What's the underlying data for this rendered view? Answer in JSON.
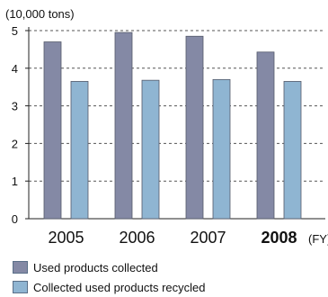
{
  "chart_data": {
    "type": "bar",
    "unit_label": "(10,000 tons)",
    "categories": [
      "2005",
      "2006",
      "2007",
      "2008"
    ],
    "highlight_category": "2008",
    "x_suffix": "(FY)",
    "yticks": [
      0,
      1,
      2,
      3,
      4,
      5
    ],
    "ylim": [
      0,
      5
    ],
    "grid": true,
    "legend_position": "bottom-left",
    "series": [
      {
        "name": "Used products collected",
        "values": [
          4.7,
          4.95,
          4.85,
          4.43
        ],
        "color": "#8489a5"
      },
      {
        "name": "Collected used products recycled",
        "values": [
          3.65,
          3.68,
          3.7,
          3.65
        ],
        "color": "#8fb5d2"
      }
    ]
  }
}
